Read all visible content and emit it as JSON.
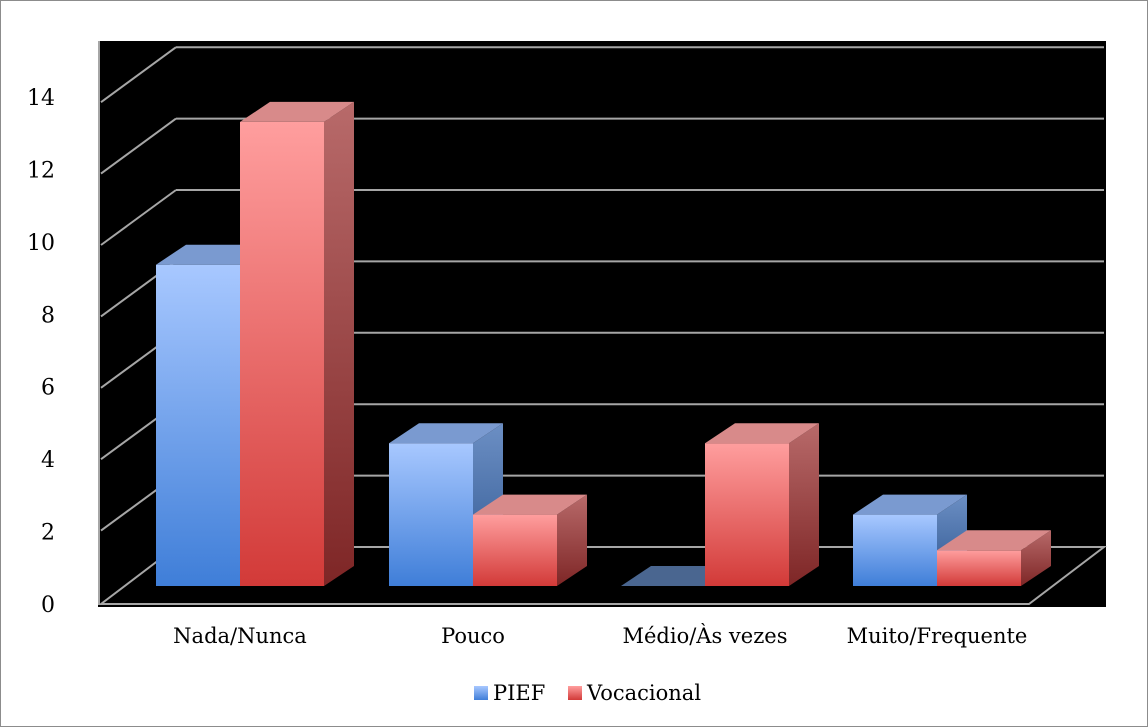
{
  "chart_data": {
    "type": "bar",
    "categories": [
      "Nada/Nunca",
      "Pouco",
      "Médio/Às vezes",
      "Muito/Frequente"
    ],
    "series": [
      {
        "name": "PIEF",
        "values": [
          9,
          4,
          0,
          2
        ],
        "color": "#4f81bd"
      },
      {
        "name": "Vocacional",
        "values": [
          13,
          2,
          4,
          1
        ],
        "color": "#c0504d"
      }
    ],
    "yticks": [
      0,
      2,
      4,
      6,
      8,
      10,
      12,
      14
    ],
    "ylim": [
      0,
      14
    ],
    "grid": true,
    "legend_position": "bottom",
    "background": "#000000",
    "gridline_color": "#a6a6a6"
  }
}
